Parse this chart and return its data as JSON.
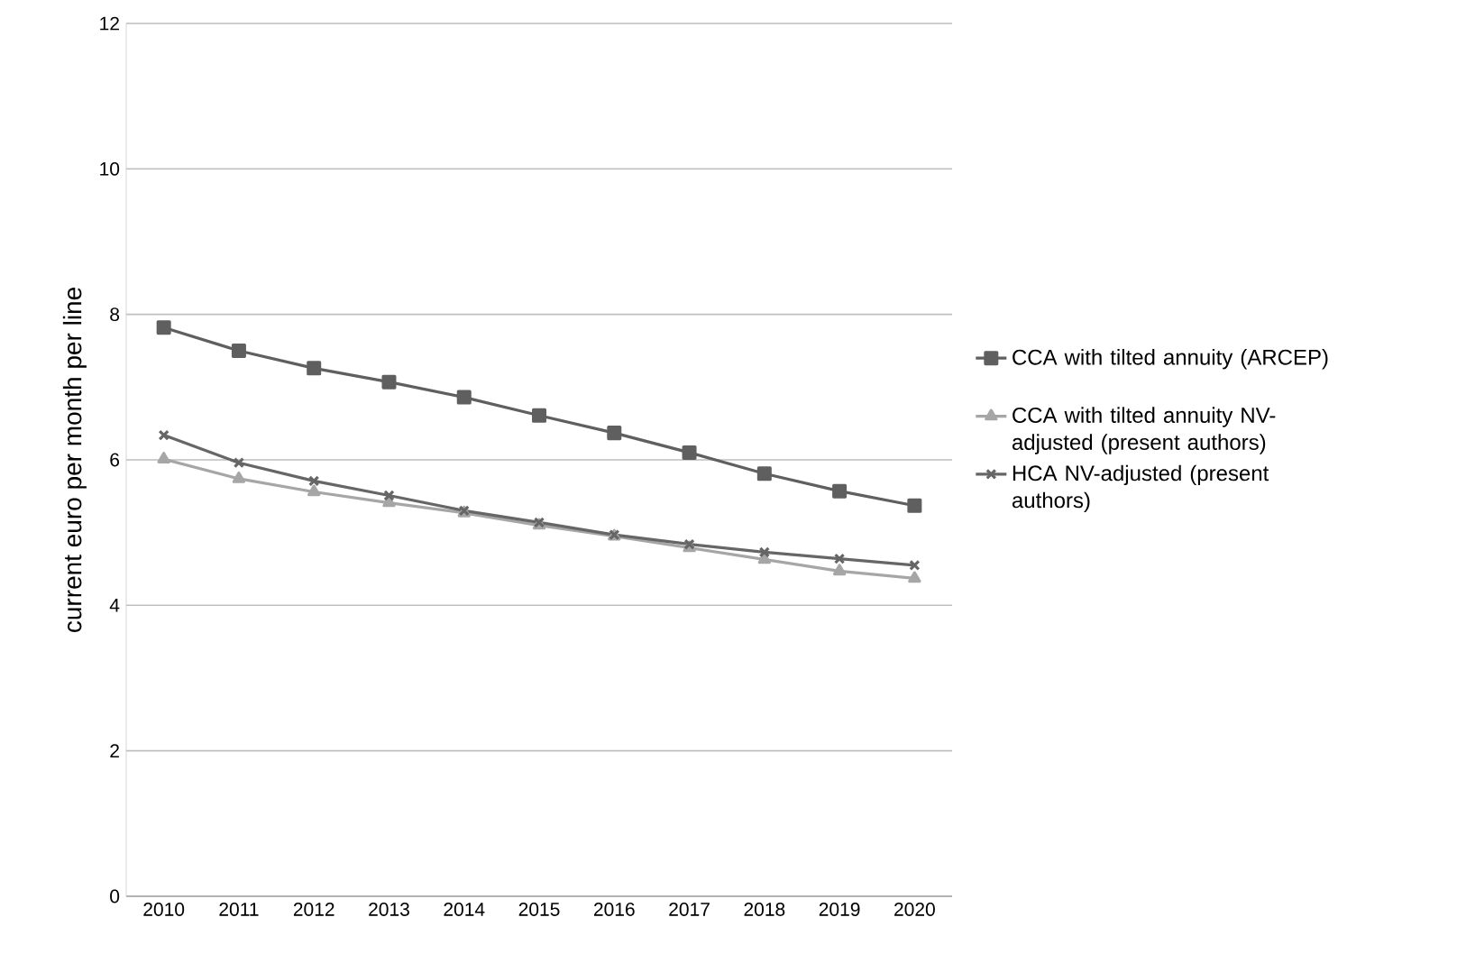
{
  "chart_data": {
    "type": "line",
    "ylabel": "current euro per month per line",
    "categories": [
      "2010",
      "2011",
      "2012",
      "2013",
      "2014",
      "2015",
      "2016",
      "2017",
      "2018",
      "2019",
      "2020"
    ],
    "series": [
      {
        "name": "CCA with tilted annuity (ARCEP)",
        "color": "#5f5f5f",
        "marker": "square",
        "values": [
          7.82,
          7.5,
          7.26,
          7.07,
          6.86,
          6.61,
          6.37,
          6.1,
          5.81,
          5.57,
          5.37
        ]
      },
      {
        "name": "CCA with tilted annuity NV-adjusted (present authors)",
        "color": "#a6a6a6",
        "marker": "triangle",
        "values": [
          6.01,
          5.74,
          5.56,
          5.41,
          5.27,
          5.1,
          4.95,
          4.79,
          4.63,
          4.47,
          4.37
        ]
      },
      {
        "name": "HCA NV-adjusted (present authors)",
        "color": "#666666",
        "marker": "cross",
        "values": [
          6.34,
          5.96,
          5.71,
          5.51,
          5.3,
          5.14,
          4.97,
          4.84,
          4.73,
          4.64,
          4.55
        ]
      }
    ],
    "ylim": [
      0,
      12
    ],
    "yticks": [
      0,
      2,
      4,
      6,
      8,
      10,
      12
    ],
    "grid": "y",
    "legend": "right"
  }
}
